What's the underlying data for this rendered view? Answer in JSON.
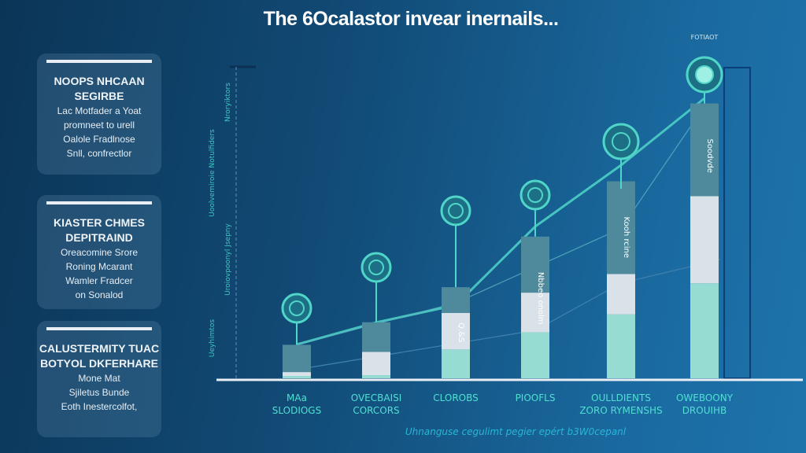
{
  "title": "The 6Ocalastor invear inernails...",
  "cards": [
    {
      "heading": "NOOPS NHCAAN SEGIRBE",
      "body": [
        "Lac Motfader a Yoat",
        "promneet to urell",
        "Oalole Fradlnose",
        "Snll, confrectlor"
      ]
    },
    {
      "heading": "KIASTER CHMES DEPITRAIND",
      "body": [
        "Oreacomine Srore",
        "Roning Mcarant",
        "Wamler Fradcer",
        "on Sonalod"
      ]
    },
    {
      "heading": "CALUSTERMITY TUAC BOTYOL DKFERHARE",
      "body": [
        "Mone Mat",
        "Sjiletus Bunde",
        "Eoth Inestercolfot,"
      ]
    }
  ],
  "footer": "Uhnanguse cegulimt pegier epért b3W0cepanl",
  "colors": {
    "accent": "#4fd6c8",
    "bar_top": "#4f8a9c",
    "bar_mid": "#d8e2e8",
    "bar_bottom": "#96dcd3",
    "axis": "#e8eef3"
  },
  "chart_data": {
    "type": "bar",
    "stacked": true,
    "title": "The 6Ocalastor invear inernails...",
    "categories": [
      [
        "MAa",
        "SLODIOGS"
      ],
      [
        "OVECBAISI",
        "CORCORS"
      ],
      [
        "CLOROBS"
      ],
      [
        "PIOOFLS"
      ],
      [
        "OULLDIENTS",
        "ZORO RYMENSHS"
      ],
      [
        "OWEBOONY",
        "DROUIHB"
      ]
    ],
    "ylabels": [
      "Ueyhimtos",
      "Uroiovpoonyl Jsepny",
      "Uoolvemiroie Notulfiders",
      "Nroryiktors"
    ],
    "series": [
      {
        "values": [
          3,
          4,
          37,
          59,
          82,
          122
        ]
      },
      {
        "values": [
          5,
          30,
          47,
          51,
          52,
          112
        ]
      },
      {
        "values": [
          35,
          38,
          33,
          72,
          119,
          119
        ]
      }
    ],
    "bar_labels": [
      "",
      "",
      "Q.&S",
      "Nbbeo onolm",
      "Kooh rcine",
      "Soodvde"
    ],
    "icons": [
      "globe-icon",
      "gear-icon",
      "sunburst-icon",
      "dollar-coin-icon",
      "shield-grid-icon",
      "gem-badge-icon"
    ],
    "top_badge": "FOTIAOT",
    "ylim": [
      0,
      400
    ],
    "grid": false,
    "legend": "none"
  }
}
